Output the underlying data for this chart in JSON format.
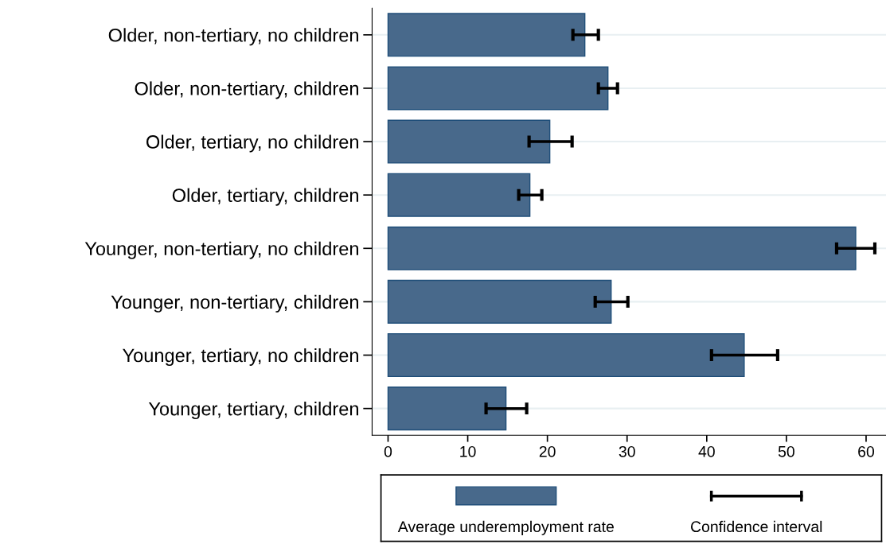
{
  "chart_data": {
    "type": "bar",
    "orientation": "horizontal",
    "categories": [
      "Older, non-tertiary, no children",
      "Older, non-tertiary, children",
      "Older, tertiary, no children",
      "Older, tertiary, children",
      "Younger, non-tertiary, no children",
      "Younger, non-tertiary, children",
      "Younger, tertiary, no children",
      "Younger, tertiary, children"
    ],
    "series": [
      {
        "name": "Average underemployment rate",
        "color": "#48698b",
        "values": [
          24.7,
          27.6,
          20.3,
          17.8,
          58.7,
          28.0,
          44.7,
          14.8
        ],
        "errors": [
          [
            23.2,
            26.4
          ],
          [
            26.4,
            28.8
          ],
          [
            17.7,
            23.1
          ],
          [
            16.4,
            19.3
          ],
          [
            56.3,
            61.1
          ],
          [
            26.0,
            30.1
          ],
          [
            40.6,
            48.9
          ],
          [
            12.3,
            17.4
          ]
        ]
      }
    ],
    "annotations": [
      "Confidence interval"
    ],
    "xlim": [
      -2,
      62.5
    ],
    "xticks": [
      0,
      10,
      20,
      30,
      40,
      50,
      60
    ],
    "grid": "y",
    "legend": "bottom"
  }
}
